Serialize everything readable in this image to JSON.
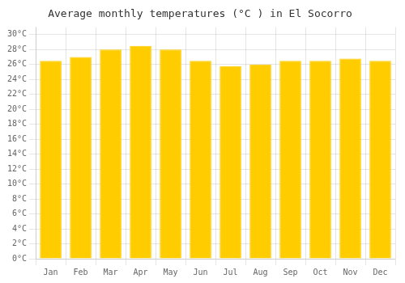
{
  "chart_data": {
    "type": "bar",
    "title": "Average monthly temperatures (°C ) in El Socorro",
    "categories": [
      "Jan",
      "Feb",
      "Mar",
      "Apr",
      "May",
      "Jun",
      "Jul",
      "Aug",
      "Sep",
      "Oct",
      "Nov",
      "Dec"
    ],
    "values": [
      26.5,
      27.0,
      28.0,
      28.5,
      28.0,
      26.5,
      25.8,
      26.0,
      26.5,
      26.5,
      26.8,
      26.5
    ],
    "color": "#FFCC00",
    "ylim": [
      0,
      31
    ],
    "yticks": [
      {
        "value": 0,
        "label": "0°C"
      },
      {
        "value": 2,
        "label": "2°C"
      },
      {
        "value": 4,
        "label": "4°C"
      },
      {
        "value": 6,
        "label": "6°C"
      },
      {
        "value": 8,
        "label": "8°C"
      },
      {
        "value": 10,
        "label": "10°C"
      },
      {
        "value": 12,
        "label": "12°C"
      },
      {
        "value": 14,
        "label": "14°C"
      },
      {
        "value": 16,
        "label": "16°C"
      },
      {
        "value": 18,
        "label": "18°C"
      },
      {
        "value": 20,
        "label": "20°C"
      },
      {
        "value": 22,
        "label": "22°C"
      },
      {
        "value": 24,
        "label": "24°C"
      },
      {
        "value": 26,
        "label": "26°C"
      },
      {
        "value": 28,
        "label": "28°C"
      },
      {
        "value": 30,
        "label": "30°C"
      }
    ],
    "grid": true
  }
}
